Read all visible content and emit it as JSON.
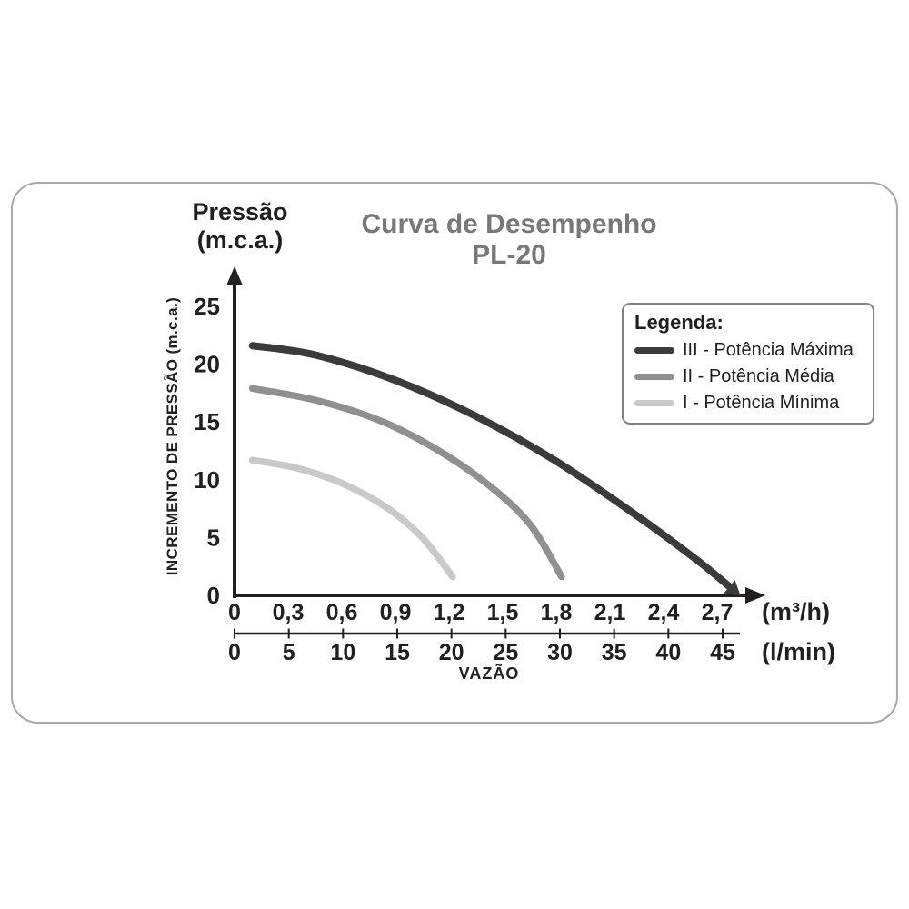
{
  "title": {
    "line1": "Curva de Desempenho",
    "line2": "PL-20"
  },
  "pressure_header": {
    "line1": "Pressão",
    "line2": "(m.c.a.)"
  },
  "ylabel_rotated": "INCREMENTO DE PRESSÃO (m.c.a.)",
  "xlabel": "VAZÃO",
  "axis_units": {
    "m3h": "(m³/h)",
    "lmin": "(l/min)"
  },
  "legend": {
    "title": "Legenda:"
  },
  "colors": {
    "title_gray": "#77787b",
    "text": "#231f20",
    "frame_border": "#a7a9ac",
    "legend_border": "#808285"
  },
  "chart_data": {
    "type": "line",
    "title": "Curva de Desempenho PL-20",
    "xlabel": "VAZÃO",
    "ylabel": "INCREMENTO DE PRESSÃO (m.c.a.)",
    "y_axis": {
      "tick_values": [
        0,
        5,
        10,
        15,
        20,
        25
      ],
      "range": [
        0,
        27
      ],
      "unit": "m.c.a."
    },
    "x_axis_primary": {
      "unit": "(m³/h)",
      "tick_labels": [
        "0",
        "0,3",
        "0,6",
        "0,9",
        "1,2",
        "1,5",
        "1,8",
        "2,1",
        "2,4",
        "2,7"
      ],
      "tick_values": [
        0,
        0.3,
        0.6,
        0.9,
        1.2,
        1.5,
        1.8,
        2.1,
        2.4,
        2.7
      ],
      "range": [
        0,
        2.95
      ]
    },
    "x_axis_secondary": {
      "unit": "(l/min)",
      "tick_labels": [
        "0",
        "5",
        "10",
        "15",
        "20",
        "25",
        "30",
        "35",
        "40",
        "45"
      ],
      "tick_values": [
        0,
        5,
        10,
        15,
        20,
        25,
        30,
        35,
        40,
        45
      ],
      "range": [
        0,
        45
      ]
    },
    "legend_title": "Legenda:",
    "legend_position": "top-right",
    "grid": false,
    "series": [
      {
        "name": "III - Potência Máxima",
        "color": "#3b3b3d",
        "stroke_width": 8,
        "arrow_end": true,
        "points": [
          [
            0.1,
            21.6
          ],
          [
            0.45,
            20.8
          ],
          [
            0.9,
            18.6
          ],
          [
            1.35,
            15.5
          ],
          [
            1.8,
            11.6
          ],
          [
            2.25,
            6.9
          ],
          [
            2.6,
            2.9
          ],
          [
            2.78,
            0.6
          ]
        ]
      },
      {
        "name": "II - Potência Média",
        "color": "#8e9092",
        "stroke_width": 7.5,
        "arrow_end": false,
        "points": [
          [
            0.1,
            17.9
          ],
          [
            0.45,
            16.9
          ],
          [
            0.8,
            15.2
          ],
          [
            1.1,
            12.9
          ],
          [
            1.4,
            9.8
          ],
          [
            1.65,
            6.2
          ],
          [
            1.83,
            1.6
          ]
        ]
      },
      {
        "name": "I - Potência Mínima",
        "color": "#c8c9cb",
        "stroke_width": 7.5,
        "arrow_end": false,
        "points": [
          [
            0.1,
            11.7
          ],
          [
            0.35,
            11.0
          ],
          [
            0.6,
            9.7
          ],
          [
            0.85,
            7.6
          ],
          [
            1.05,
            5.0
          ],
          [
            1.22,
            1.6
          ]
        ]
      }
    ]
  }
}
